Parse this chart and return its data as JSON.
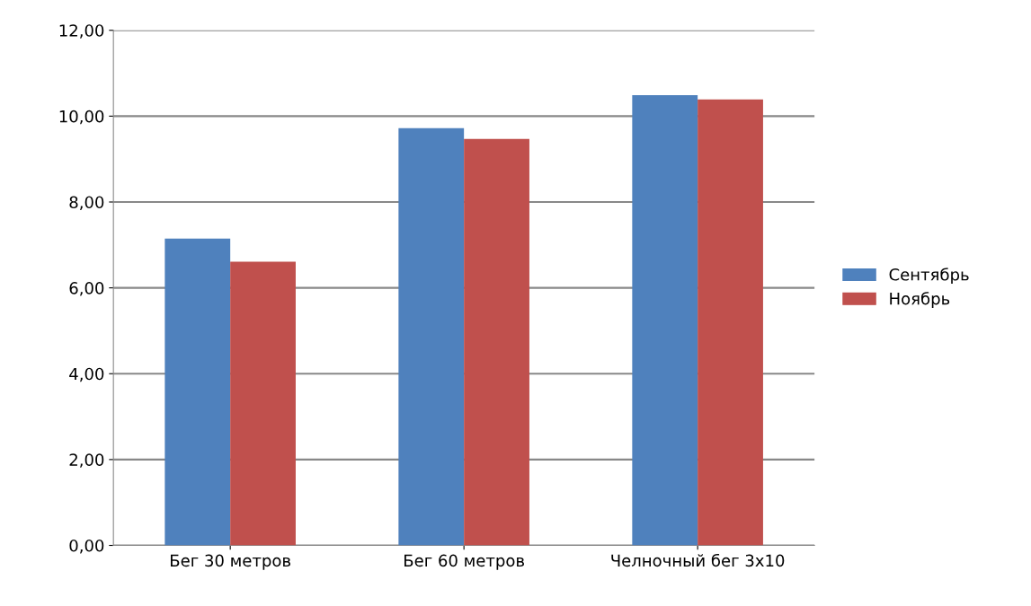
{
  "chart_data": {
    "type": "bar",
    "categories": [
      "Бег 30 метров",
      "Бег 60 метров",
      "Челночный бег 3х10"
    ],
    "series": [
      {
        "name": "Сентябрь",
        "color": "#4f81bd",
        "values": [
          7.15,
          9.72,
          10.49
        ]
      },
      {
        "name": "Ноябрь",
        "color": "#c0504d",
        "values": [
          6.61,
          9.47,
          10.39
        ]
      }
    ],
    "ylim": [
      0,
      12
    ],
    "yticks": [
      {
        "value": 0,
        "label": "0,00"
      },
      {
        "value": 2,
        "label": "2,00"
      },
      {
        "value": 4,
        "label": "4,00"
      },
      {
        "value": 6,
        "label": "6,00"
      },
      {
        "value": 8,
        "label": "8,00"
      },
      {
        "value": 10,
        "label": "10,00"
      },
      {
        "value": 12,
        "label": "12,00"
      }
    ],
    "grid": "y",
    "legend": "right"
  }
}
